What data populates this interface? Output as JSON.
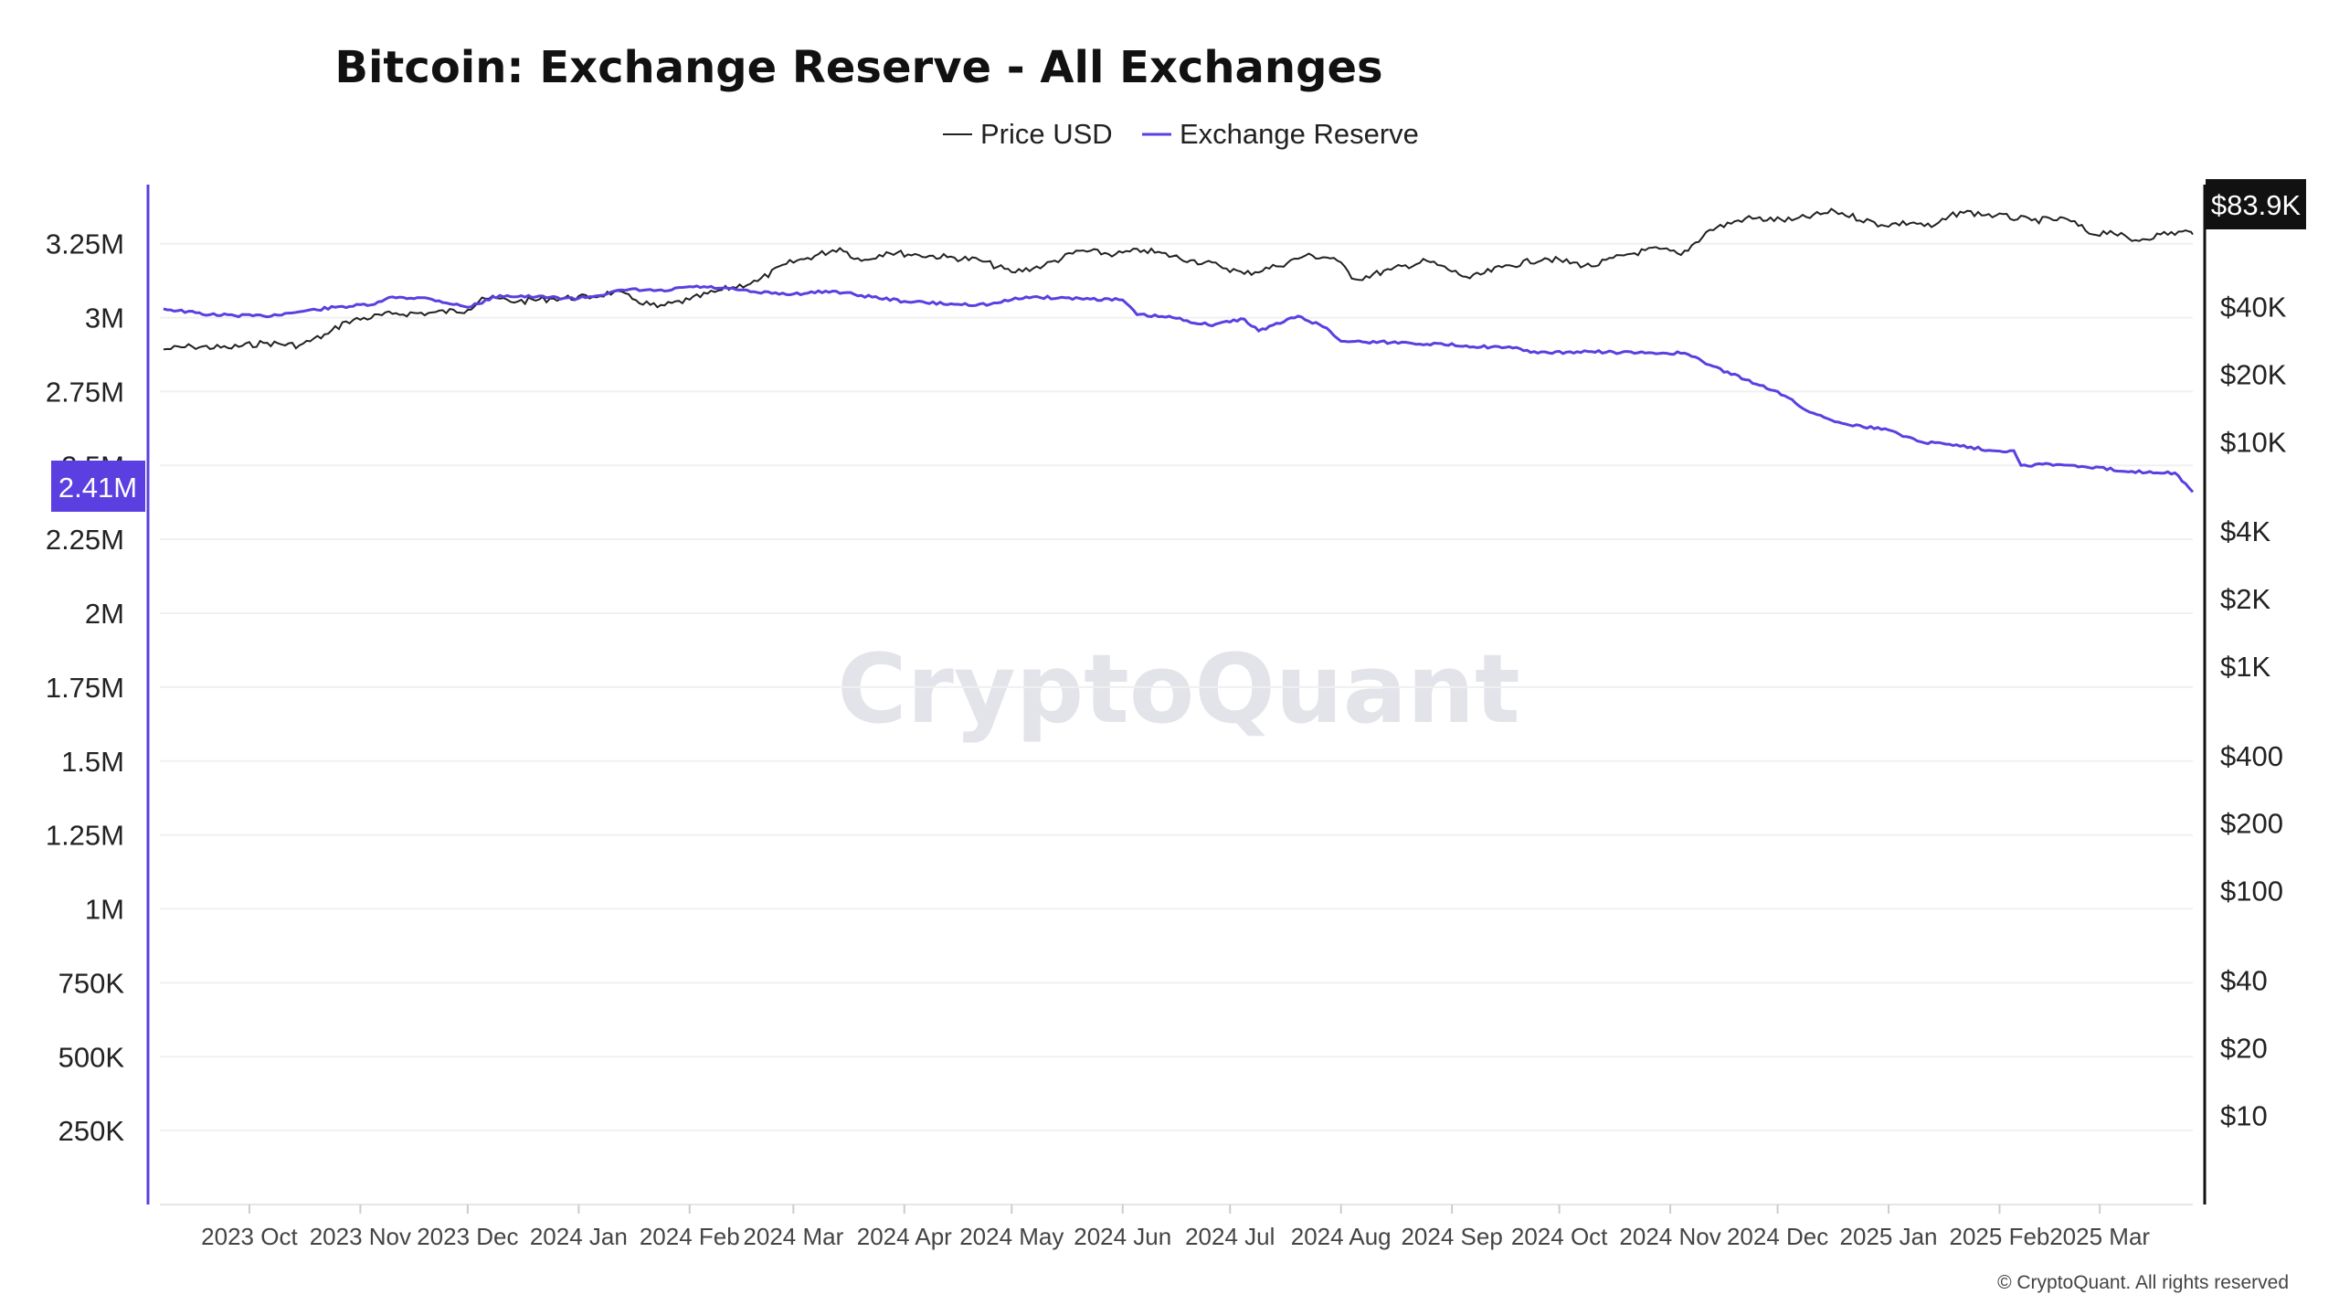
{
  "chart_data": {
    "type": "line",
    "title": "Bitcoin: Exchange Reserve - All Exchanges",
    "legend": {
      "placement": "top-center",
      "items": [
        "Price USD",
        "Exchange Reserve"
      ]
    },
    "grid": true,
    "x_tick_labels": [
      "2023 Oct",
      "2023 Nov",
      "2023 Dec",
      "2024 Jan",
      "2024 Feb",
      "2024 Mar",
      "2024 Apr",
      "2024 May",
      "2024 Jun",
      "2024 Jul",
      "2024 Aug",
      "2024 Sep",
      "2024 Oct",
      "2024 Nov",
      "2024 Dec",
      "2025 Jan",
      "2025 Feb",
      "2025 Mar"
    ],
    "x_tick_dates": [
      "2023-10-01",
      "2023-11-01",
      "2023-12-01",
      "2024-01-01",
      "2024-02-01",
      "2024-03-01",
      "2024-04-01",
      "2024-05-01",
      "2024-06-01",
      "2024-07-01",
      "2024-08-01",
      "2024-09-01",
      "2024-10-01",
      "2024-11-01",
      "2024-12-01",
      "2025-01-01",
      "2025-02-01",
      "2025-03-01"
    ],
    "x_range": [
      "2023-09-06",
      "2025-03-27"
    ],
    "left_axis": {
      "scale": "linear",
      "range": [
        0,
        3450000
      ],
      "ticks": [
        250000,
        500000,
        750000,
        1000000,
        1250000,
        1500000,
        1750000,
        2000000,
        2250000,
        2500000,
        2750000,
        3000000,
        3250000
      ],
      "tick_labels": [
        "250K",
        "500K",
        "750K",
        "1M",
        "1.25M",
        "1.5M",
        "1.75M",
        "2M",
        "2.25M",
        "2.5M",
        "2.75M",
        "3M",
        "3.25M"
      ],
      "color": "#5b3fe0"
    },
    "right_axis": {
      "scale": "log",
      "range": [
        4,
        140000
      ],
      "ticks": [
        10,
        20,
        40,
        100,
        200,
        400,
        1000,
        2000,
        4000,
        10000,
        20000,
        40000
      ],
      "tick_labels": [
        "$10",
        "$20",
        "$40",
        "$100",
        "$200",
        "$400",
        "$1K",
        "$2K",
        "$4K",
        "$10K",
        "$20K",
        "$40K"
      ],
      "color": "#111111"
    },
    "series": [
      {
        "name": "Price USD",
        "axis": "right",
        "color": "#222222",
        "points": [
          [
            "2023-09-07",
            25800
          ],
          [
            "2023-09-15",
            26600
          ],
          [
            "2023-09-25",
            26200
          ],
          [
            "2023-10-05",
            27600
          ],
          [
            "2023-10-15",
            26900
          ],
          [
            "2023-10-23",
            30300
          ],
          [
            "2023-10-28",
            34400
          ],
          [
            "2023-11-10",
            37200
          ],
          [
            "2023-11-20",
            37500
          ],
          [
            "2023-12-01",
            38700
          ],
          [
            "2023-12-05",
            44000
          ],
          [
            "2023-12-15",
            42200
          ],
          [
            "2023-12-25",
            43500
          ],
          [
            "2024-01-05",
            44200
          ],
          [
            "2024-01-11",
            46700
          ],
          [
            "2024-01-17",
            42800
          ],
          [
            "2024-01-23",
            39800
          ],
          [
            "2024-02-01",
            43000
          ],
          [
            "2024-02-10",
            47500
          ],
          [
            "2024-02-20",
            52000
          ],
          [
            "2024-02-28",
            62000
          ],
          [
            "2024-03-05",
            66000
          ],
          [
            "2024-03-14",
            73000
          ],
          [
            "2024-03-20",
            64000
          ],
          [
            "2024-03-27",
            70000
          ],
          [
            "2024-04-05",
            68000
          ],
          [
            "2024-04-13",
            66500
          ],
          [
            "2024-04-22",
            64500
          ],
          [
            "2024-05-01",
            57000
          ],
          [
            "2024-05-10",
            61000
          ],
          [
            "2024-05-20",
            71000
          ],
          [
            "2024-05-30",
            68500
          ],
          [
            "2024-06-07",
            71500
          ],
          [
            "2024-06-20",
            64500
          ],
          [
            "2024-06-28",
            61000
          ],
          [
            "2024-07-05",
            56000
          ],
          [
            "2024-07-14",
            60500
          ],
          [
            "2024-07-22",
            67500
          ],
          [
            "2024-07-30",
            66000
          ],
          [
            "2024-08-05",
            53000
          ],
          [
            "2024-08-15",
            58500
          ],
          [
            "2024-08-25",
            64000
          ],
          [
            "2024-09-06",
            53500
          ],
          [
            "2024-09-15",
            60000
          ],
          [
            "2024-09-27",
            65800
          ],
          [
            "2024-10-10",
            60500
          ],
          [
            "2024-10-20",
            68500
          ],
          [
            "2024-10-29",
            72500
          ],
          [
            "2024-11-04",
            68000
          ],
          [
            "2024-11-12",
            88000
          ],
          [
            "2024-11-22",
            99000
          ],
          [
            "2024-12-05",
            97000
          ],
          [
            "2024-12-17",
            106500
          ],
          [
            "2024-12-30",
            92500
          ],
          [
            "2025-01-08",
            95000
          ],
          [
            "2025-01-13",
            90500
          ],
          [
            "2025-01-21",
            106000
          ],
          [
            "2025-01-31",
            102000
          ],
          [
            "2025-02-10",
            97000
          ],
          [
            "2025-02-20",
            98000
          ],
          [
            "2025-02-27",
            84000
          ],
          [
            "2025-03-04",
            87000
          ],
          [
            "2025-03-10",
            78500
          ],
          [
            "2025-03-18",
            84000
          ],
          [
            "2025-03-26",
            86500
          ],
          [
            "2025-03-27",
            83900
          ]
        ]
      },
      {
        "name": "Exchange Reserve",
        "axis": "left",
        "color": "#5b3fe0",
        "points": [
          [
            "2023-09-07",
            3030000
          ],
          [
            "2023-09-20",
            3010000
          ],
          [
            "2023-10-05",
            3005000
          ],
          [
            "2023-10-15",
            3020000
          ],
          [
            "2023-10-25",
            3035000
          ],
          [
            "2023-11-05",
            3045000
          ],
          [
            "2023-11-10",
            3070000
          ],
          [
            "2023-11-20",
            3065000
          ],
          [
            "2023-12-01",
            3035000
          ],
          [
            "2023-12-10",
            3075000
          ],
          [
            "2023-12-20",
            3070000
          ],
          [
            "2024-01-01",
            3065000
          ],
          [
            "2024-01-15",
            3095000
          ],
          [
            "2024-01-25",
            3090000
          ],
          [
            "2024-02-01",
            3105000
          ],
          [
            "2024-02-10",
            3100000
          ],
          [
            "2024-02-20",
            3085000
          ],
          [
            "2024-03-01",
            3080000
          ],
          [
            "2024-03-12",
            3090000
          ],
          [
            "2024-03-20",
            3075000
          ],
          [
            "2024-04-01",
            3055000
          ],
          [
            "2024-04-15",
            3045000
          ],
          [
            "2024-04-25",
            3045000
          ],
          [
            "2024-05-05",
            3070000
          ],
          [
            "2024-05-20",
            3065000
          ],
          [
            "2024-06-01",
            3060000
          ],
          [
            "2024-06-05",
            3010000
          ],
          [
            "2024-06-15",
            3000000
          ],
          [
            "2024-06-25",
            2975000
          ],
          [
            "2024-07-05",
            2995000
          ],
          [
            "2024-07-09",
            2955000
          ],
          [
            "2024-07-20",
            3005000
          ],
          [
            "2024-07-28",
            2965000
          ],
          [
            "2024-08-01",
            2920000
          ],
          [
            "2024-08-20",
            2915000
          ],
          [
            "2024-09-05",
            2905000
          ],
          [
            "2024-09-20",
            2895000
          ],
          [
            "2024-09-25",
            2880000
          ],
          [
            "2024-10-10",
            2885000
          ],
          [
            "2024-10-25",
            2880000
          ],
          [
            "2024-11-05",
            2880000
          ],
          [
            "2024-11-12",
            2840000
          ],
          [
            "2024-11-22",
            2790000
          ],
          [
            "2024-12-01",
            2750000
          ],
          [
            "2024-12-10",
            2680000
          ],
          [
            "2024-12-20",
            2640000
          ],
          [
            "2025-01-01",
            2620000
          ],
          [
            "2025-01-10",
            2580000
          ],
          [
            "2025-01-20",
            2570000
          ],
          [
            "2025-01-30",
            2550000
          ],
          [
            "2025-02-05",
            2550000
          ],
          [
            "2025-02-07",
            2500000
          ],
          [
            "2025-02-15",
            2505000
          ],
          [
            "2025-02-25",
            2495000
          ],
          [
            "2025-03-10",
            2480000
          ],
          [
            "2025-03-22",
            2475000
          ],
          [
            "2025-03-27",
            2410000
          ]
        ]
      }
    ],
    "last_value_badges": {
      "left": "2.41M",
      "right": "$83.9K"
    },
    "watermark": "CryptoQuant",
    "copyright": "© CryptoQuant. All rights reserved"
  }
}
